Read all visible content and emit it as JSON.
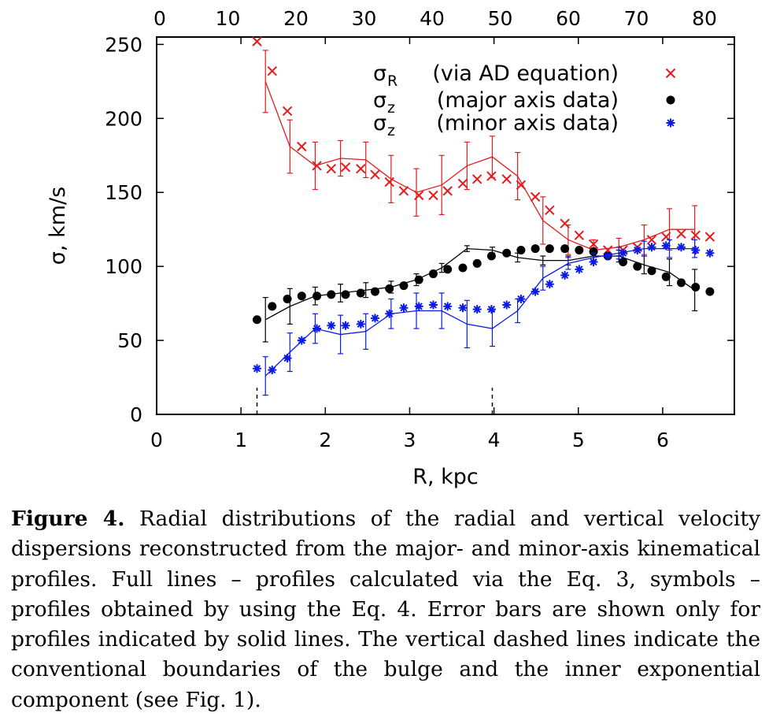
{
  "chart_data": {
    "type": "scatter",
    "xlabel": "R, kpc",
    "ylabel": "σ, km/s",
    "xlim": [
      0,
      6.85
    ],
    "ylim": [
      0,
      255
    ],
    "x_ticks": [
      "0",
      "1",
      "2",
      "3",
      "4",
      "5",
      "6"
    ],
    "y_ticks": [
      "0",
      "50",
      "100",
      "150",
      "200",
      "250"
    ],
    "top_ticks": [
      "0",
      "10",
      "20",
      "30",
      "40",
      "50",
      "60",
      "70",
      "80"
    ],
    "grid": false,
    "legend_position": "top-right",
    "legend": [
      {
        "symbol": "σ",
        "sub": "R",
        "text": "(via AD equation)",
        "color": "#e41a1c",
        "marker": "x"
      },
      {
        "symbol": "σ",
        "sub": "z",
        "text": "(major axis data)",
        "color": "#000000",
        "marker": "circle"
      },
      {
        "symbol": "σ",
        "sub": "z",
        "text": "(minor axis data)",
        "color": "#0a1ae6",
        "marker": "star"
      }
    ],
    "dashed_lines": [
      {
        "x": 1.19,
        "y": [
          0,
          18
        ]
      },
      {
        "x": 3.98,
        "y": [
          0,
          18
        ]
      }
    ],
    "series": [
      {
        "name": "σR (via AD equation)",
        "color": "#e41a1c",
        "marker": "x",
        "points": {
          "x": [
            1.19,
            1.37,
            1.55,
            1.72,
            1.9,
            2.07,
            2.24,
            2.42,
            2.59,
            2.76,
            2.93,
            3.11,
            3.28,
            3.45,
            3.63,
            3.8,
            3.97,
            4.15,
            4.32,
            4.49,
            4.66,
            4.84,
            5.01,
            5.18,
            5.35,
            5.53,
            5.7,
            5.87,
            6.04,
            6.22,
            6.39,
            6.56
          ],
          "y": [
            252,
            232,
            205,
            181,
            168,
            166,
            167,
            166,
            162,
            157,
            151,
            148,
            148,
            151,
            156,
            159,
            161,
            159,
            155,
            147,
            138,
            129,
            121,
            115,
            111,
            111,
            113,
            118,
            120,
            122,
            121,
            120
          ]
        },
        "line": {
          "x": [
            1.29,
            1.58,
            1.88,
            2.18,
            2.48,
            2.78,
            3.08,
            3.38,
            3.68,
            3.98,
            4.28,
            4.58,
            4.88,
            5.18,
            5.48,
            5.78,
            6.08,
            6.38
          ],
          "y": [
            225,
            181,
            168,
            173,
            172,
            159,
            150,
            155,
            168,
            174,
            161,
            131,
            118,
            111,
            113,
            118,
            125,
            125
          ],
          "err": [
            21,
            18,
            16,
            12,
            12,
            16,
            16,
            20,
            16,
            14,
            16,
            16,
            10,
            7,
            6,
            10,
            14,
            16
          ]
        }
      },
      {
        "name": "σz (major axis data)",
        "color": "#000000",
        "marker": "circle",
        "points": {
          "x": [
            1.19,
            1.37,
            1.55,
            1.72,
            1.9,
            2.07,
            2.24,
            2.42,
            2.59,
            2.76,
            2.93,
            3.11,
            3.28,
            3.45,
            3.63,
            3.8,
            3.97,
            4.15,
            4.32,
            4.49,
            4.66,
            4.84,
            5.01,
            5.18,
            5.35,
            5.53,
            5.7,
            5.87,
            6.04,
            6.22,
            6.39,
            6.56
          ],
          "y": [
            64,
            73,
            78,
            80,
            80,
            81,
            81,
            82,
            83,
            85,
            87,
            91,
            95,
            98,
            99,
            102,
            107,
            109,
            111,
            112,
            112,
            112,
            111,
            110,
            107,
            103,
            100,
            97,
            93,
            89,
            86,
            83
          ]
        },
        "line": {
          "x": [
            1.29,
            1.58,
            1.88,
            2.18,
            2.48,
            2.78,
            3.08,
            3.38,
            3.68,
            3.98,
            4.28,
            4.58,
            4.88,
            5.18,
            5.48,
            5.78,
            6.08,
            6.38
          ],
          "y": [
            64,
            73,
            80,
            82,
            84,
            86,
            91,
            99,
            112,
            111,
            106,
            104,
            104,
            107,
            107,
            101,
            96,
            84
          ],
          "err": [
            15,
            12,
            6,
            6,
            5,
            4,
            4,
            3,
            2,
            2,
            3,
            3,
            3,
            3,
            4,
            6,
            9,
            14
          ]
        }
      },
      {
        "name": "σz (minor axis data)",
        "color": "#0a1ae6",
        "marker": "star",
        "points": {
          "x": [
            1.19,
            1.37,
            1.55,
            1.72,
            1.9,
            2.07,
            2.24,
            2.42,
            2.59,
            2.76,
            2.93,
            3.11,
            3.28,
            3.45,
            3.63,
            3.8,
            3.97,
            4.15,
            4.32,
            4.49,
            4.66,
            4.84,
            5.01,
            5.18,
            5.35,
            5.53,
            5.7,
            5.87,
            6.04,
            6.22,
            6.39,
            6.56
          ],
          "y": [
            31,
            30,
            38,
            50,
            58,
            60,
            60,
            61,
            65,
            68,
            72,
            73,
            74,
            73,
            72,
            71,
            71,
            74,
            78,
            83,
            88,
            94,
            98,
            103,
            107,
            109,
            111,
            113,
            114,
            113,
            111,
            109
          ]
        },
        "line": {
          "x": [
            1.29,
            1.58,
            1.88,
            2.18,
            2.48,
            2.78,
            3.08,
            3.38,
            3.68,
            3.98,
            4.28,
            4.58,
            4.88,
            5.18,
            5.48,
            5.78,
            6.08,
            6.38
          ],
          "y": [
            26,
            42,
            58,
            54,
            56,
            68,
            70,
            70,
            61,
            58,
            70,
            92,
            102,
            106,
            109,
            112,
            112,
            112
          ],
          "err": [
            13,
            13,
            10,
            13,
            12,
            10,
            12,
            12,
            16,
            12,
            8,
            8,
            4,
            3,
            4,
            5,
            6,
            6
          ]
        }
      }
    ]
  },
  "caption": {
    "label": "Figure 4.",
    "text": " Radial distributions of the radial and vertical velocity dispersions reconstructed from the major- and minor-axis kinematical profiles. Full lines – profiles calculated via the Eq. 3, symbols – profiles obtained by using the Eq. 4. Error bars are shown only for profiles indicated by solid lines. The vertical dashed lines indicate the conventional boundaries of the bulge and the inner exponential component (see Fig. 1)."
  }
}
